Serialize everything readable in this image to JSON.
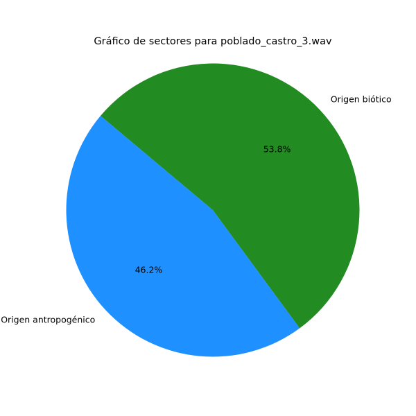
{
  "chart_data": {
    "type": "pie",
    "title": "Gráfico de sectores para poblado_castro_3.wav",
    "slices": [
      {
        "label": "Origen antropogénico",
        "value": 46.2,
        "pct_label": "46.2%",
        "color": "#1e90ff"
      },
      {
        "label": "Origen biótico",
        "value": 53.8,
        "pct_label": "53.8%",
        "color": "#228b22"
      }
    ],
    "start_angle_deg": 140,
    "direction": "counterclockwise"
  }
}
